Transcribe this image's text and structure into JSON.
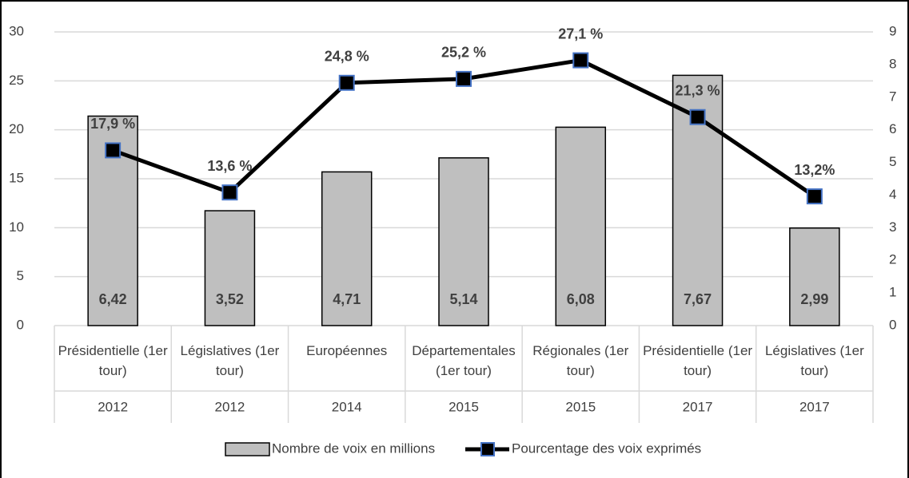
{
  "chart_data": {
    "type": "bar-line",
    "categories": [
      "Présidentielle (1er tour)",
      "Législatives (1er tour)",
      "Européennes",
      "Départementales (1er tour)",
      "Régionales (1er tour)",
      "Présidentielle (1er tour)",
      "Législatives (1er tour)"
    ],
    "years": [
      "2012",
      "2012",
      "2014",
      "2015",
      "2015",
      "2017",
      "2017"
    ],
    "series": [
      {
        "name": "Nombre de voix en millions",
        "type": "bar",
        "axis": "y2",
        "color": "#bfbfbf",
        "values": [
          6.42,
          3.52,
          4.71,
          5.14,
          6.08,
          7.67,
          2.99
        ],
        "value_labels": [
          "6,42",
          "3,52",
          "4,71",
          "5,14",
          "6,08",
          "7,67",
          "2,99"
        ]
      },
      {
        "name": "Pourcentage des voix exprimés",
        "type": "line",
        "axis": "y",
        "color": "#000000",
        "values": [
          17.9,
          13.6,
          24.8,
          25.2,
          27.1,
          21.3,
          13.2
        ],
        "value_labels": [
          "17,9 %",
          "13,6 %",
          "24,8 %",
          "25,2 %",
          "27,1 %",
          "21,3 %",
          "13,2%"
        ]
      }
    ],
    "ylim": [
      0,
      30
    ],
    "yticks": [
      0,
      5,
      10,
      15,
      20,
      25,
      30
    ],
    "y2lim": [
      0,
      9
    ],
    "y2ticks": [
      0,
      1,
      2,
      3,
      4,
      5,
      6,
      7,
      8,
      9
    ],
    "grid": true
  }
}
